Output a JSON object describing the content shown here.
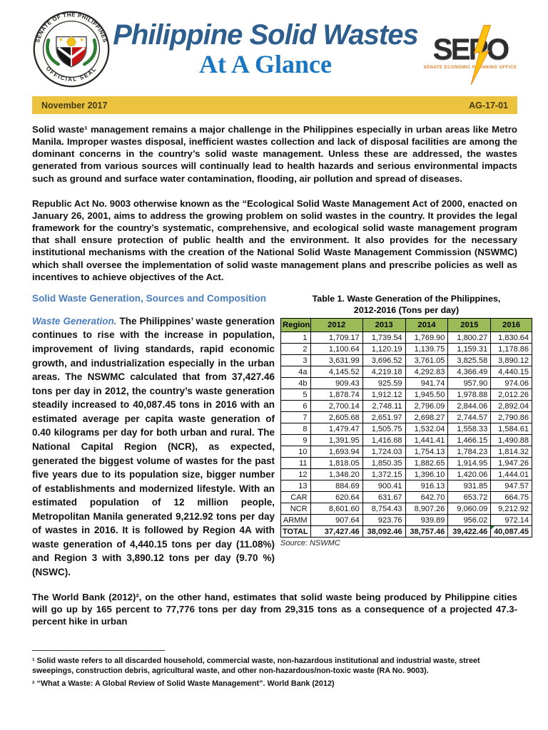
{
  "header": {
    "title_line1": "Philippine Solid Wastes",
    "title_line2": "At A Glance",
    "seal": {
      "ring_top": "SENATE OF THE PHILIPPINES",
      "ring_bottom": "OFFICIAL SEAL"
    },
    "sepo": {
      "word": "SEPO",
      "subtitle": "SENATE ECONOMIC PLANNING OFFICE"
    }
  },
  "banner": {
    "date": "November 2017",
    "code": "AG-17-01"
  },
  "intro": {
    "p1": "Solid waste¹ management remains a major challenge in the Philippines especially in urban areas like Metro Manila. Improper wastes disposal, inefficient wastes collection and lack of disposal facilities are among the dominant concerns in the country’s solid waste management. Unless these are addressed, the wastes generated from various sources will continually lead to health hazards and serious environmental impacts such as ground and surface water contamination, flooding, air pollution and spread of diseases.",
    "p2": "Republic Act No. 9003 otherwise known as the “Ecological Solid Waste Management Act of 2000, enacted on January 26, 2001, aims to address the growing problem on solid wastes in the country. It provides the legal framework for the country’s systematic, comprehensive, and ecological solid waste management program that shall ensure protection of public health and the environment. It also provides for the necessary institutional mechanisms with the creation of the National Solid Waste Management Commission (NSWMC) which shall oversee the implementation of solid waste management plans and prescribe policies as well as incentives to achieve objectives of the Act."
  },
  "section": {
    "heading": "Solid Waste Generation, Sources and Composition",
    "lead": "Waste Generation.",
    "body": "The Philippines’ waste generation continues to rise with the increase in population, improvement of living standards, rapid economic growth, and industrialization especially in the urban areas. The NSWMC calculated that from 37,427.46 tons per day in 2012, the country’s waste generation steadily increased to 40,087.45 tons in 2016 with an estimated average per capita waste generation of 0.40 kilograms per day for both urban and rural. The National Capital Region (NCR), as expected, generated the biggest volume of wastes for the past five years due to its population size, bigger number of establishments and modernized lifestyle. With an estimated population of 12 million people, Metropolitan Manila generated 9,212.92 tons per day of wastes in 2016. It is followed by Region 4A with waste generation of 4,440.15 tons per day (11.08%) and Region 3 with 3,890.12 tons per day (9.70 %) (NSWC)."
  },
  "table": {
    "title_line1": "Table 1. Waste Generation of the Philippines,",
    "title_line2": "2012-2016 (Tons per day)",
    "columns": [
      "Region",
      "2012",
      "2013",
      "2014",
      "2015",
      "2016"
    ],
    "rows": [
      {
        "region": "1",
        "values": [
          "1,709.17",
          "1,739.54",
          "1,769.90",
          "1,800.27",
          "1,830.64"
        ]
      },
      {
        "region": "2",
        "values": [
          "1,100.64",
          "1,120.19",
          "1,139.75",
          "1,159.31",
          "1,178.86"
        ]
      },
      {
        "region": "3",
        "values": [
          "3,631.99",
          "3,696.52",
          "3,761.05",
          "3,825.58",
          "3,890.12"
        ]
      },
      {
        "region": "4a",
        "values": [
          "4,145.52",
          "4,219.18",
          "4,292.83",
          "4,366.49",
          "4,440.15"
        ]
      },
      {
        "region": "4b",
        "values": [
          "909.43",
          "925.59",
          "941.74",
          "957.90",
          "974.06"
        ]
      },
      {
        "region": "5",
        "values": [
          "1,878.74",
          "1,912.12",
          "1,945.50",
          "1,978.88",
          "2,012.26"
        ]
      },
      {
        "region": "6",
        "values": [
          "2,700.14",
          "2,748.11",
          "2,796.09",
          "2,844.06",
          "2,892.04"
        ]
      },
      {
        "region": "7",
        "values": [
          "2,605.68",
          "2,651.97",
          "2,698.27",
          "2,744.57",
          "2,790.86"
        ]
      },
      {
        "region": "8",
        "values": [
          "1,479.47",
          "1,505.75",
          "1,532.04",
          "1,558.33",
          "1,584.61"
        ]
      },
      {
        "region": "9",
        "values": [
          "1,391.95",
          "1,416.68",
          "1,441.41",
          "1,466.15",
          "1,490.88"
        ]
      },
      {
        "region": "10",
        "values": [
          "1,693.94",
          "1,724.03",
          "1,754.13",
          "1,784.23",
          "1,814.32"
        ]
      },
      {
        "region": "11",
        "values": [
          "1,818.05",
          "1,850.35",
          "1,882.65",
          "1,914.95",
          "1,947.26"
        ]
      },
      {
        "region": "12",
        "values": [
          "1,348.20",
          "1,372.15",
          "1,396.10",
          "1,420.06",
          "1,444.01"
        ]
      },
      {
        "region": "13",
        "values": [
          "884.69",
          "900.41",
          "916.13",
          "931.85",
          "947.57"
        ]
      },
      {
        "region": "CAR",
        "values": [
          "620.64",
          "631.67",
          "642.70",
          "653.72",
          "664.75"
        ]
      },
      {
        "region": "NCR",
        "values": [
          "8,601.60",
          "8,754.43",
          "8,907.26",
          "9,060.09",
          "9,212.92"
        ]
      },
      {
        "region": "ARMM",
        "values": [
          "907.64",
          "923.76",
          "939.89",
          "956.02",
          "972.14"
        ]
      },
      {
        "region": "TOTAL",
        "values": [
          "37,427.46",
          "38,092.46",
          "38,757.46",
          "39,422.46",
          "40,087.45"
        ],
        "total": true
      }
    ],
    "source": "Source: NSWMC"
  },
  "world_bank": {
    "text": "The World Bank (2012)², on the other hand, estimates that solid waste being produced by Philippine cities will go up by 165 percent to 77,776 tons per day from 29,315 tons as a consequence of a projected 47.3-percent hike in urban"
  },
  "footnotes": [
    "¹ Solid waste refers to all discarded household, commercial waste, non-hazardous institutional and industrial waste, street sweepings, construction debris, agricultural waste, and other non-hazardous/non-toxic waste (RA No. 9003).",
    "² “What a Waste: A Global Review of Solid Waste Management”. World Bank (2012)"
  ],
  "colors": {
    "banner_bg": "#ecc33f",
    "table_header_bg": "#9bbb59",
    "title_dark_blue": "#2d5e8e",
    "title_light_blue": "#1b76c1",
    "section_heading_blue": "#4a7ebf",
    "flag_triangle_green": "#1e7e34"
  }
}
